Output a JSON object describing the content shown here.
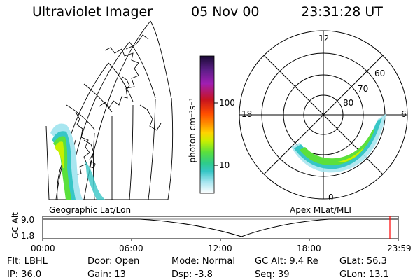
{
  "header": {
    "title": "Ultraviolet Imager",
    "date": "05 Nov 00",
    "time": "23:31:28 UT"
  },
  "left_map": {
    "caption": "Geographic Lat/Lon"
  },
  "colorbar": {
    "unit_label": "photon cm⁻²s⁻¹",
    "tick_labels": [
      "100",
      "10"
    ],
    "colors": [
      "#1a0a35",
      "#5b1e86",
      "#a01eb4",
      "#c8141e",
      "#ff4d00",
      "#ff9500",
      "#ffd400",
      "#c8f000",
      "#5be03c",
      "#2ecc8a",
      "#37c6c6",
      "#a8e6f0",
      "#ffffff"
    ]
  },
  "polar": {
    "caption": "Apex MLat/MLT",
    "mlt_labels": {
      "top": "12",
      "left": "18",
      "right": "6",
      "bottom": "0"
    },
    "lat_labels": [
      "60",
      "70",
      "80"
    ]
  },
  "timeline": {
    "y_label": "GC Alt",
    "y_ticks": [
      "9.0",
      "1.8"
    ],
    "x_ticks": [
      "00:00",
      "06:00",
      "12:00",
      "18:00",
      "23:59"
    ],
    "current_marker_color": "#ff0000"
  },
  "status": {
    "filter": "Flt: LBHL",
    "ip": "IP: 36.0",
    "door": "Door: Open",
    "gain": "Gain: 13",
    "mode": "Mode: Normal",
    "dsp": "Dsp:  -3.8",
    "gc_alt": "GC Alt: 9.4 Re",
    "seq": "Seq: 39",
    "glat": "GLat:  56.3",
    "glon": "GLon:  13.1"
  }
}
